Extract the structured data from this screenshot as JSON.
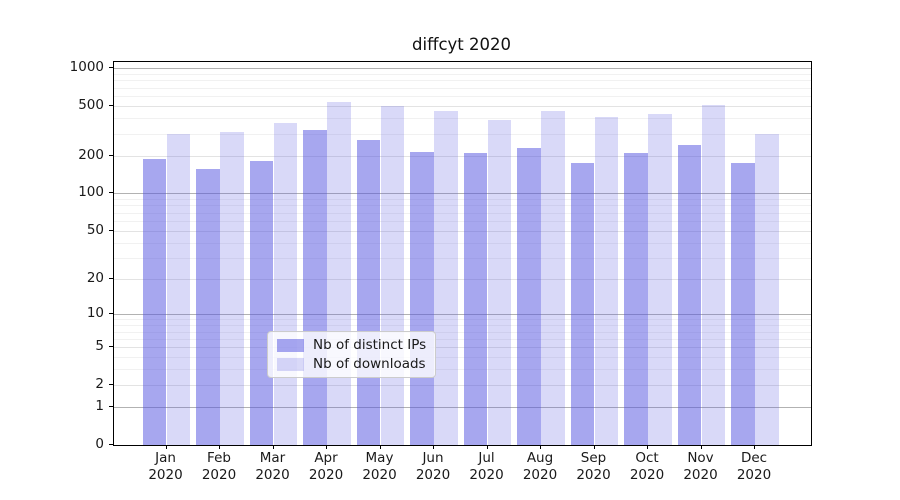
{
  "chart": {
    "title": "diffcyt 2020"
  },
  "legend": {
    "items": [
      {
        "label": "Nb of distinct IPs",
        "series": "ips"
      },
      {
        "label": "Nb of downloads",
        "series": "downloads"
      }
    ]
  },
  "axis": {
    "y_tick_labels": [
      "1000",
      "500",
      "200",
      "100",
      "50",
      "20",
      "10",
      "5",
      "2",
      "1",
      "0"
    ],
    "x_months": [
      "Jan",
      "Feb",
      "Mar",
      "Apr",
      "May",
      "Jun",
      "Jul",
      "Aug",
      "Sep",
      "Oct",
      "Nov",
      "Dec"
    ],
    "x_year": "2020"
  },
  "colors": {
    "bar_base": "#5050e0",
    "ips_rgba": "rgba(80,80,224,0.5)",
    "downloads_rgba": "rgba(80,80,224,0.22)",
    "grid_major": "#b2b2b2",
    "grid_labeled": "#e3e3e3",
    "grid_minor": "#f1f1f1",
    "text": "#1a1a1a",
    "spine": "#000000",
    "legend_border": "#cccccc"
  },
  "chart_data": {
    "type": "bar",
    "title": "diffcyt 2020",
    "categories": [
      "Jan 2020",
      "Feb 2020",
      "Mar 2020",
      "Apr 2020",
      "May 2020",
      "Jun 2020",
      "Jul 2020",
      "Aug 2020",
      "Sep 2020",
      "Oct 2020",
      "Nov 2020",
      "Dec 2020"
    ],
    "series": [
      {
        "name": "Nb of distinct IPs",
        "values": [
          188,
          156,
          183,
          320,
          269,
          213,
          209,
          230,
          175,
          209,
          246,
          174
        ]
      },
      {
        "name": "Nb of downloads",
        "values": [
          300,
          309,
          366,
          538,
          500,
          458,
          390,
          458,
          409,
          434,
          510,
          300
        ]
      }
    ],
    "yscale": "log10(value+1)",
    "yticks": [
      0,
      1,
      2,
      5,
      10,
      20,
      50,
      100,
      200,
      500,
      1000
    ],
    "ylim": [
      0,
      1120
    ],
    "grid": "both",
    "legend_position": "lower center"
  }
}
